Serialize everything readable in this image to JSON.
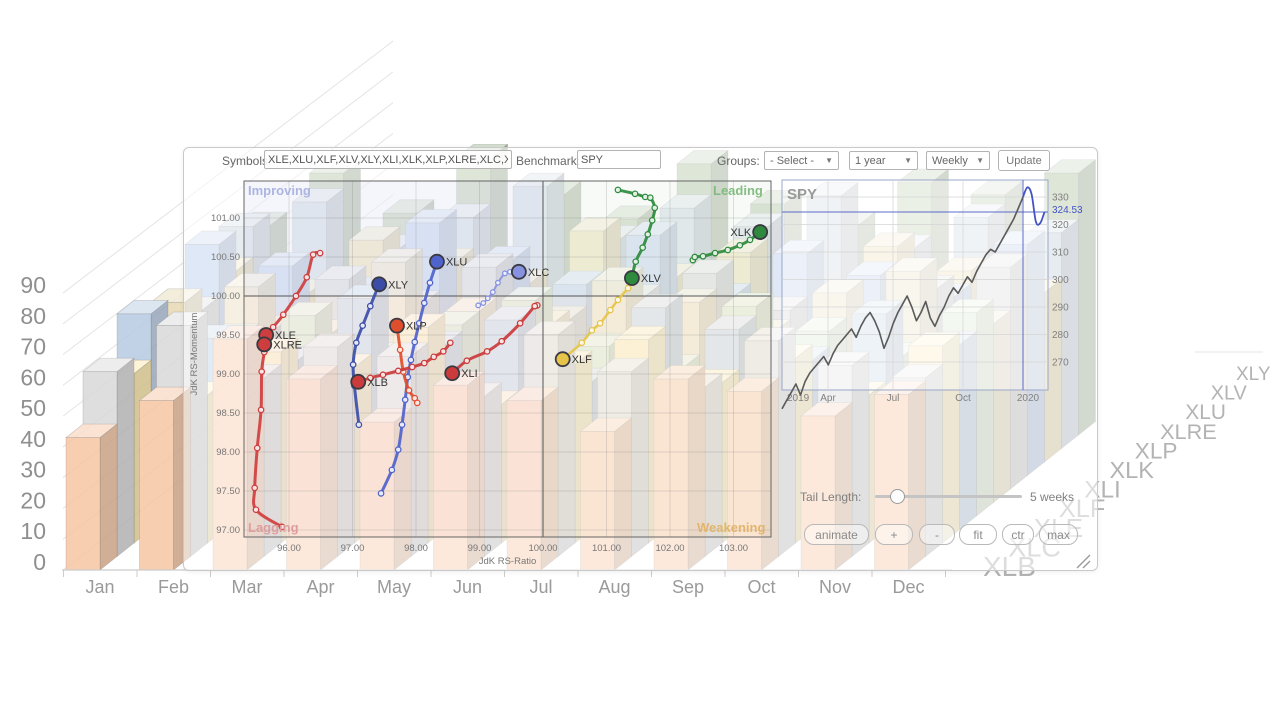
{
  "toolbar": {
    "symbols_label": "Symbols:",
    "symbols_value": "XLE,XLU,XLF,XLV,XLY,XLI,XLK,XLP,XLRE,XLC,XLB",
    "benchmark_label": "Benchmark:",
    "benchmark_value": "SPY",
    "groups_label": "Groups:",
    "groups_value": "- Select -",
    "period_value": "1 year",
    "frequency_value": "Weekly",
    "update_label": "Update"
  },
  "controls": {
    "tail_length_label": "Tail Length:",
    "tail_length_value": "5 weeks",
    "buttons": [
      "animate",
      "+",
      "-",
      "fit",
      "ctr",
      "max"
    ]
  },
  "chart_data": [
    {
      "type": "scatter",
      "name": "relative-rotation-graph",
      "xlabel": "JdK RS-Ratio",
      "ylabel": "JdK RS-Momentum",
      "xlim": [
        95.3,
        103.6
      ],
      "ylim": [
        96.95,
        101.5
      ],
      "x_ticks": [
        96,
        97,
        98,
        99,
        100,
        101,
        102,
        103
      ],
      "y_ticks": [
        101,
        100.5,
        100,
        99.5,
        99,
        98.5,
        98,
        97.5,
        97
      ],
      "center": [
        100,
        100
      ],
      "quadrants": [
        {
          "label": "Improving",
          "color": "#a9b1e1",
          "pos": "top-left"
        },
        {
          "label": "Leading",
          "color": "#7fba7c",
          "pos": "top-right"
        },
        {
          "label": "Lagging",
          "color": "#df9a9a",
          "pos": "bottom-left"
        },
        {
          "label": "Weakening",
          "color": "#e2b367",
          "pos": "bottom-right"
        }
      ],
      "series": [
        {
          "symbol": "XLE",
          "color": "#cf3e3e",
          "width": 3,
          "points": [
            [
              96.49,
              100.55
            ],
            [
              96.38,
              100.53
            ],
            [
              96.28,
              100.24
            ],
            [
              96.11,
              100.0
            ],
            [
              95.91,
              99.76
            ],
            [
              95.75,
              99.6
            ],
            [
              95.64,
              99.5
            ]
          ]
        },
        {
          "symbol": "XLRE",
          "color": "#cf3e3e",
          "width": 3,
          "points": [
            [
              95.89,
              97.04
            ],
            [
              95.48,
              97.26
            ],
            [
              95.46,
              97.54
            ],
            [
              95.5,
              98.05
            ],
            [
              95.56,
              98.54
            ],
            [
              95.57,
              99.03
            ],
            [
              95.61,
              99.28
            ],
            [
              95.61,
              99.38
            ]
          ]
        },
        {
          "symbol": "XLY",
          "color": "#3c4da8",
          "width": 3,
          "points": [
            [
              97.1,
              98.35
            ],
            [
              97.03,
              98.85
            ],
            [
              97.01,
              99.12
            ],
            [
              97.06,
              99.4
            ],
            [
              97.16,
              99.62
            ],
            [
              97.28,
              99.87
            ],
            [
              97.42,
              100.15
            ]
          ]
        },
        {
          "symbol": "XLU",
          "color": "#4f63cc",
          "width": 3,
          "points": [
            [
              97.45,
              97.47
            ],
            [
              97.62,
              97.77
            ],
            [
              97.72,
              98.03
            ],
            [
              97.78,
              98.35
            ],
            [
              97.83,
              98.67
            ],
            [
              97.87,
              98.96
            ],
            [
              97.92,
              99.18
            ],
            [
              97.98,
              99.41
            ],
            [
              98.05,
              99.65
            ],
            [
              98.13,
              99.91
            ],
            [
              98.22,
              100.17
            ],
            [
              98.33,
              100.44
            ]
          ]
        },
        {
          "symbol": "XLC",
          "color": "#8793e0",
          "width": 2,
          "points": [
            [
              98.98,
              99.88
            ],
            [
              99.06,
              99.91
            ],
            [
              99.13,
              99.97
            ],
            [
              99.21,
              100.05
            ],
            [
              99.29,
              100.17
            ],
            [
              99.4,
              100.29
            ],
            [
              99.48,
              100.31
            ],
            [
              99.62,
              100.31
            ]
          ]
        },
        {
          "symbol": "XLP",
          "color": "#e04f2d",
          "width": 3,
          "points": [
            [
              98.02,
              98.63
            ],
            [
              97.98,
              98.69
            ],
            [
              97.89,
              98.79
            ],
            [
              97.8,
              99.03
            ],
            [
              97.75,
              99.31
            ],
            [
              97.7,
              99.62
            ]
          ]
        },
        {
          "symbol": "XLB",
          "color": "#cb3b3b",
          "width": 3,
          "points": [
            [
              98.54,
              99.4
            ],
            [
              98.43,
              99.29
            ],
            [
              98.28,
              99.22
            ],
            [
              98.13,
              99.14
            ],
            [
              97.94,
              99.09
            ],
            [
              97.72,
              99.04
            ],
            [
              97.48,
              98.99
            ],
            [
              97.28,
              98.95
            ],
            [
              97.09,
              98.9
            ]
          ]
        },
        {
          "symbol": "XLI",
          "color": "#cb3b3b",
          "width": 3,
          "points": [
            [
              99.91,
              99.88
            ],
            [
              99.87,
              99.87
            ],
            [
              99.64,
              99.65
            ],
            [
              99.35,
              99.42
            ],
            [
              99.12,
              99.29
            ],
            [
              98.8,
              99.17
            ],
            [
              98.57,
              99.01
            ]
          ]
        },
        {
          "symbol": "XLF",
          "color": "#e6c449",
          "width": 2.5,
          "points": [
            [
              101.34,
              100.1
            ],
            [
              101.18,
              99.95
            ],
            [
              101.06,
              99.82
            ],
            [
              100.9,
              99.65
            ],
            [
              100.77,
              99.56
            ],
            [
              100.61,
              99.4
            ],
            [
              100.31,
              99.19
            ]
          ]
        },
        {
          "symbol": "XLV",
          "color": "#2e8b3d",
          "width": 3,
          "points": [
            [
              101.18,
              101.36
            ],
            [
              101.45,
              101.31
            ],
            [
              101.61,
              101.27
            ],
            [
              101.69,
              101.26
            ],
            [
              101.76,
              101.13
            ],
            [
              101.72,
              100.97
            ],
            [
              101.65,
              100.79
            ],
            [
              101.57,
              100.62
            ],
            [
              101.46,
              100.44
            ],
            [
              101.4,
              100.23
            ]
          ]
        },
        {
          "symbol": "XLK",
          "color": "#2e8b3d",
          "width": 3,
          "label_side": "left",
          "points": [
            [
              102.36,
              100.46
            ],
            [
              102.39,
              100.5
            ],
            [
              102.52,
              100.51
            ],
            [
              102.71,
              100.55
            ],
            [
              102.91,
              100.59
            ],
            [
              103.1,
              100.65
            ],
            [
              103.26,
              100.72
            ],
            [
              103.42,
              100.82
            ]
          ]
        }
      ]
    },
    {
      "type": "line",
      "name": "benchmark-price",
      "title": "SPY",
      "x_ticks": [
        "2019",
        "Apr",
        "Jul",
        "Oct",
        "2020"
      ],
      "y_ticks": [
        330,
        320,
        310,
        300,
        290,
        280,
        270
      ],
      "last_value": 324.53,
      "line_color": "#5a5a5a",
      "tail_color": "#4353c4",
      "values": [
        253,
        256,
        259,
        262,
        258,
        263,
        266,
        268,
        270,
        272,
        269,
        273,
        276,
        278,
        280,
        282,
        279,
        283,
        286,
        288,
        285,
        281,
        275,
        279,
        284,
        288,
        291,
        294,
        290,
        285,
        288,
        292,
        286,
        283,
        287,
        290,
        294,
        297,
        295,
        298,
        301,
        299,
        303,
        306,
        309,
        311,
        310,
        313,
        316,
        319,
        322,
        326,
        330
      ],
      "tail_values": [
        330,
        333.5,
        331,
        321,
        320.5,
        324.53
      ]
    },
    {
      "type": "bar3d",
      "name": "sector-3d-history",
      "months": [
        "Jan",
        "Feb",
        "Mar",
        "Apr",
        "May",
        "Jun",
        "Jul",
        "Aug",
        "Sep",
        "Oct",
        "Nov",
        "Dec"
      ],
      "y_ticks": [
        90,
        80,
        70,
        60,
        50,
        40,
        30,
        20,
        10,
        0
      ],
      "series": [
        {
          "name": "XLB",
          "color": "#f7c6a3",
          "values": [
            43,
            55,
            75,
            62,
            48,
            60,
            55,
            45,
            62,
            58,
            50,
            57
          ]
        },
        {
          "name": "XLC",
          "color": "#d9d9d9",
          "values": [
            60,
            75,
            58,
            68,
            65,
            52,
            72,
            60,
            55,
            70,
            62,
            58
          ]
        },
        {
          "name": "XLE",
          "color": "#fde9a9",
          "values": [
            55,
            48,
            62,
            57,
            70,
            45,
            58,
            66,
            52,
            60,
            48,
            64
          ]
        },
        {
          "name": "XLF",
          "color": "#b7cbe3",
          "values": [
            70,
            62,
            55,
            75,
            60,
            68,
            48,
            72,
            65,
            55,
            70,
            60
          ]
        },
        {
          "name": "XLI",
          "color": "#cfe2c1",
          "values": [
            48,
            58,
            65,
            52,
            62,
            70,
            55,
            48,
            68,
            60,
            52,
            66
          ]
        },
        {
          "name": "XLK",
          "color": "#e7d9b4",
          "values": [
            65,
            70,
            55,
            78,
            62,
            58,
            72,
            65,
            55,
            68,
            75,
            58
          ]
        },
        {
          "name": "XLP",
          "color": "#cccccc",
          "values": [
            58,
            52,
            68,
            60,
            72,
            55,
            62,
            70,
            58,
            52,
            65,
            72
          ]
        },
        {
          "name": "XLRE",
          "color": "#adc5e7",
          "values": [
            75,
            68,
            60,
            82,
            70,
            62,
            78,
            58,
            72,
            65,
            58,
            75
          ]
        },
        {
          "name": "XLU",
          "color": "#e9d79c",
          "values": [
            62,
            55,
            72,
            65,
            58,
            75,
            60,
            68,
            52,
            70,
            62,
            55
          ]
        },
        {
          "name": "XLV",
          "color": "#c3cfdc",
          "values": [
            72,
            80,
            65,
            75,
            85,
            68,
            78,
            72,
            82,
            65,
            75,
            70
          ]
        },
        {
          "name": "XLY",
          "color": "#a9bf9b",
          "values": [
            68,
            85,
            72,
            90,
            78,
            70,
            88,
            75,
            68,
            82,
            78,
            85
          ]
        }
      ]
    }
  ]
}
